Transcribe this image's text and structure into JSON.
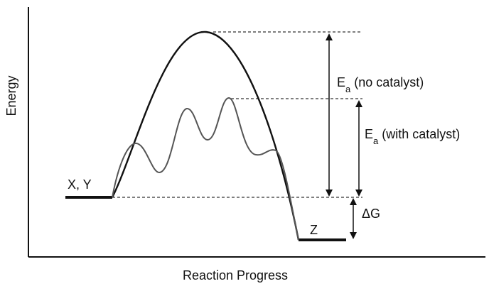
{
  "axes": {
    "x_label": "Reaction Progress",
    "y_label": "Energy"
  },
  "labels": {
    "reactants": "X, Y",
    "product": "Z",
    "ea_no_catalyst_main": "E",
    "ea_no_catalyst_sub": "a",
    "ea_no_catalyst_suffix": " (no catalyst)",
    "ea_with_catalyst_main": "E",
    "ea_with_catalyst_sub": "a",
    "ea_with_catalyst_suffix": " (with catalyst)",
    "delta_g": "ΔG"
  },
  "colors": {
    "uncatalyzed_curve": "#111111",
    "catalyzed_curve": "#555555",
    "axes": "#111111",
    "arrows": "#111111",
    "guides": "#333333"
  }
}
